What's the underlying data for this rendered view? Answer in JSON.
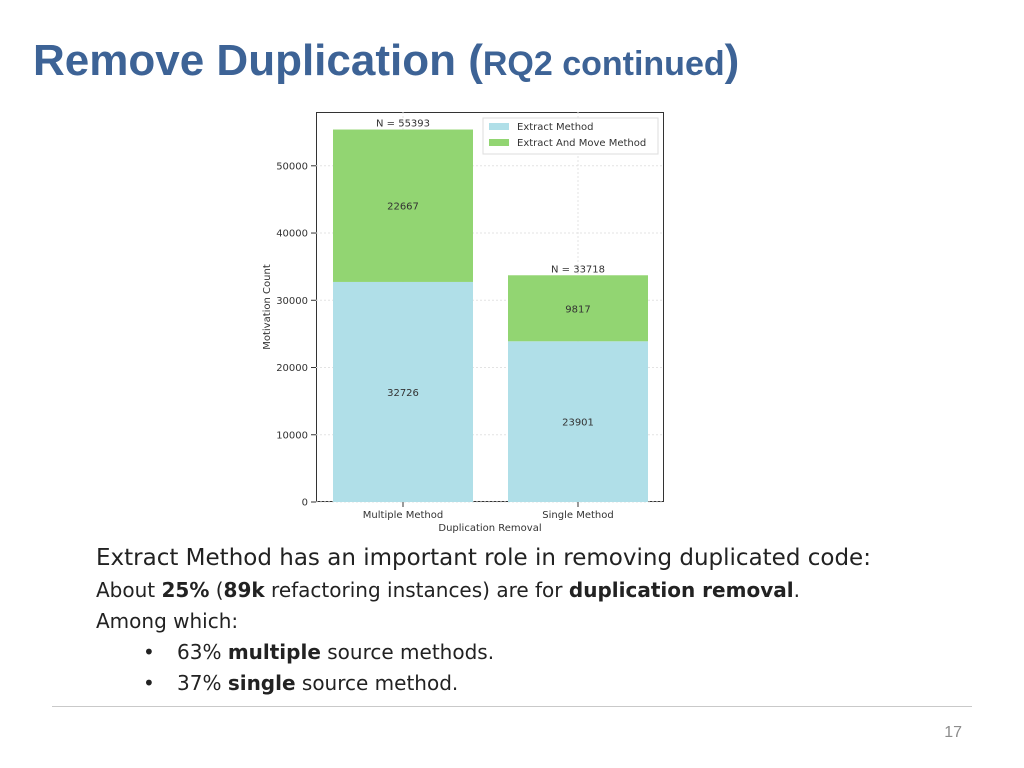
{
  "slide": {
    "title_main": "Remove Duplication (",
    "title_sub": "RQ2 continued",
    "title_end": ")",
    "page_number": "17"
  },
  "text": {
    "line1": "Extract Method has an important role in removing duplicated code:",
    "line2_a": "About ",
    "line2_b": "25%",
    "line2_c": " (",
    "line2_d": "89k",
    "line2_e": " refactoring instances) are for ",
    "line2_f": "duplication removal",
    "line2_g": ".",
    "line3": "Among which:",
    "bullets": [
      {
        "a": "63% ",
        "b": "multiple",
        "c": " source methods."
      },
      {
        "a": "37% ",
        "b": "single",
        "c": " source method."
      }
    ]
  },
  "chart_data": {
    "type": "bar",
    "stacked": true,
    "categories": [
      "Multiple Method",
      "Single Method"
    ],
    "series": [
      {
        "name": "Extract Method",
        "color": "#b0dfe8",
        "values": [
          32726,
          23901
        ],
        "labels": [
          "32726",
          "23901"
        ]
      },
      {
        "name": "Extract And Move Method",
        "color": "#92d572",
        "values": [
          22667,
          9817
        ],
        "labels": [
          "22667",
          "9817"
        ]
      }
    ],
    "totals": [
      "N = 55393",
      "N = 33718"
    ],
    "xlabel": "Duplication Removal",
    "ylabel": "Motivation Count",
    "ylim": [
      0,
      58000
    ],
    "yticks": [
      0,
      10000,
      20000,
      30000,
      40000,
      50000
    ],
    "ytick_labels": [
      "0",
      "10000",
      "20000",
      "30000",
      "40000",
      "50000"
    ],
    "grid": true,
    "legend": "top-right"
  }
}
